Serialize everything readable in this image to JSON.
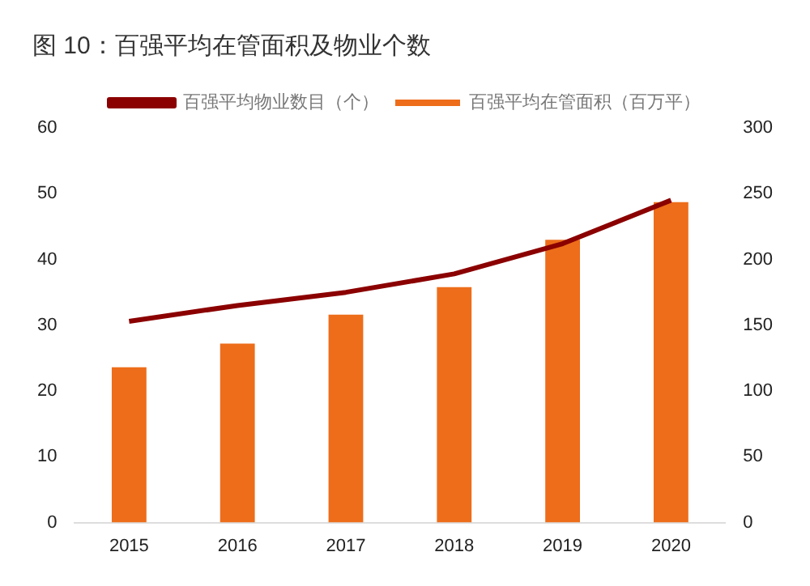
{
  "chart_data": {
    "type": "bar",
    "title": "图 10：百强平均在管面积及物业个数",
    "categories": [
      "2015",
      "2016",
      "2017",
      "2018",
      "2019",
      "2020"
    ],
    "series": [
      {
        "name": "百强平均在管面积（百万平）",
        "color": "#ed6d1a",
        "values": [
          23.6,
          27.2,
          31.6,
          35.8,
          43.0,
          48.7
        ]
      },
      {
        "name": "百强平均物业数目（个）",
        "type": "line",
        "axis": "y2",
        "color": "#8b0000",
        "values": [
          153,
          165,
          175,
          189,
          212,
          245
        ]
      }
    ],
    "ylim": [
      0,
      60
    ],
    "yticks": [
      0,
      10,
      20,
      30,
      40,
      50,
      60
    ],
    "y2lim": [
      0,
      300
    ],
    "y2ticks": [
      0,
      50,
      100,
      150,
      200,
      250,
      300
    ],
    "grid": false,
    "legend": "top"
  }
}
